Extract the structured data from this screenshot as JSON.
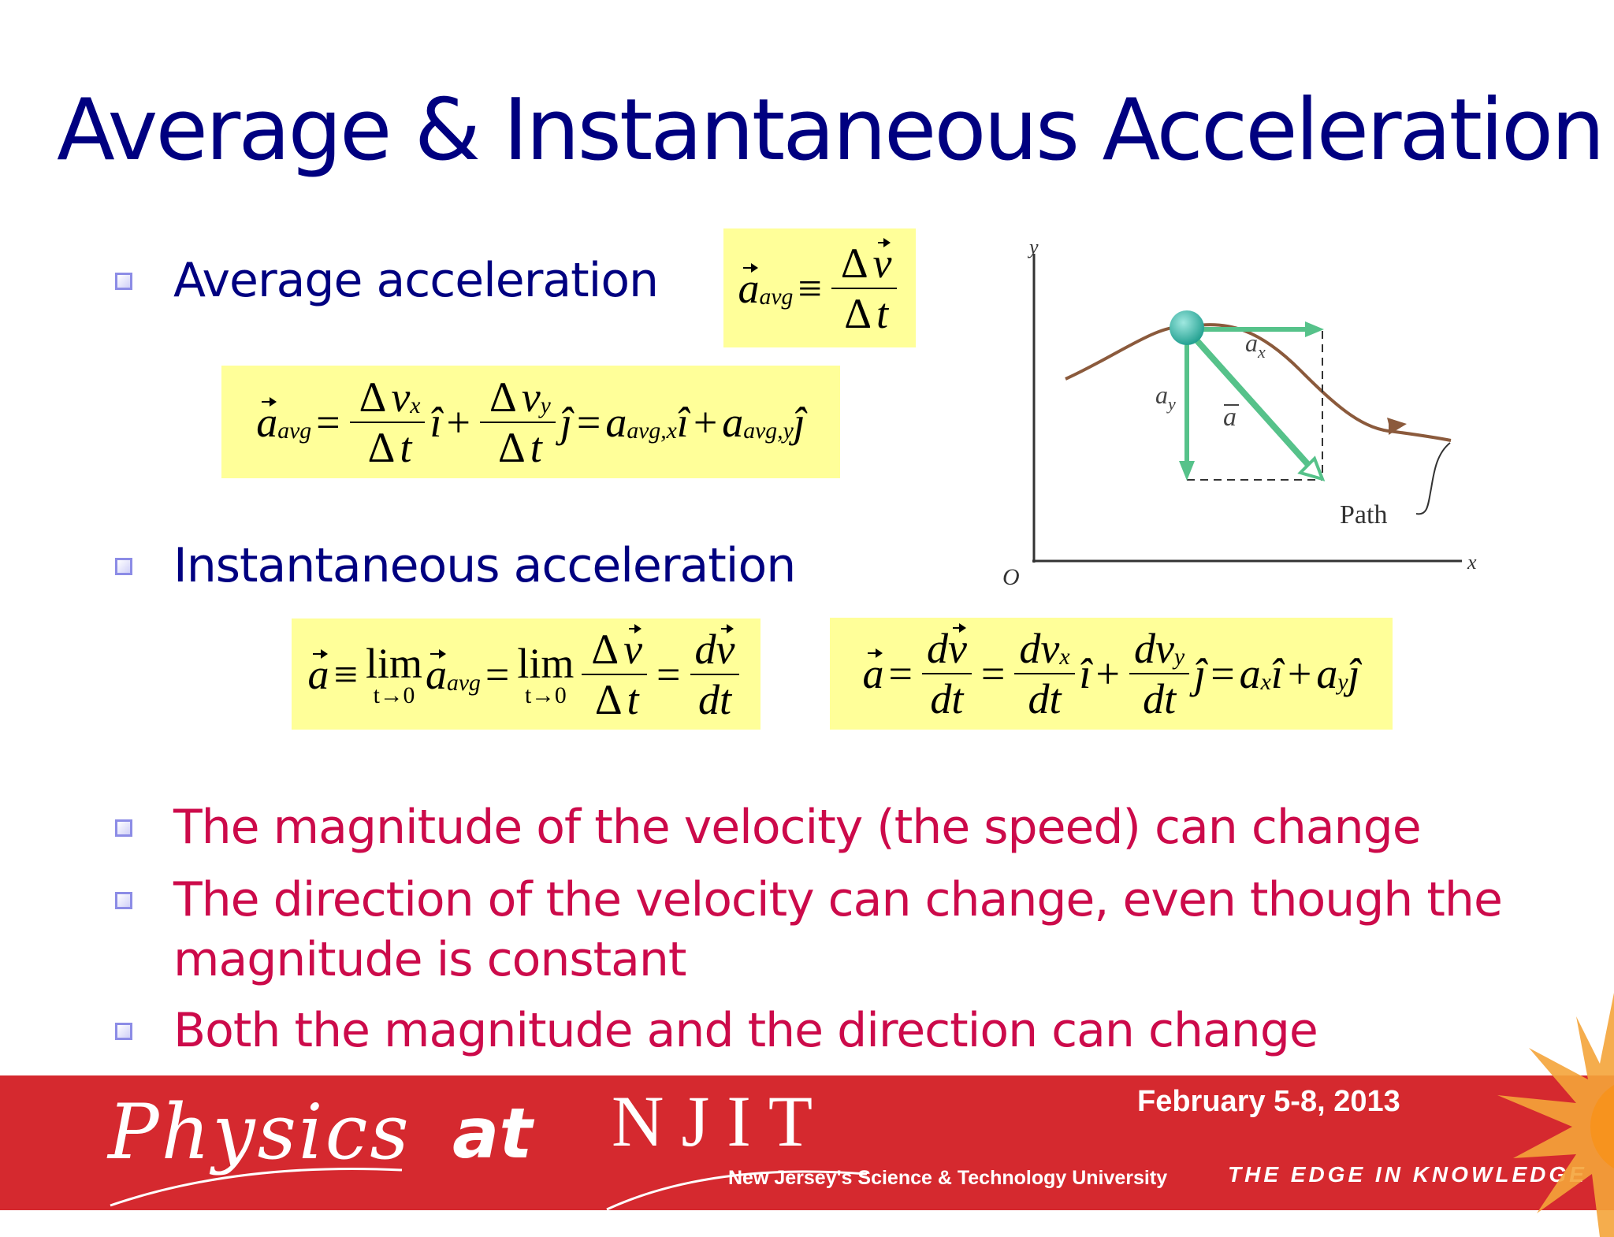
{
  "title": "Average & Instantaneous Acceleration",
  "bullets": [
    {
      "lines": [
        "Average acceleration"
      ]
    },
    {
      "lines": [
        "Instantaneous acceleration"
      ]
    },
    {
      "lines": [
        "The magnitude of the velocity (the speed) can change"
      ]
    },
    {
      "lines": [
        "The direction of the velocity can change, even though the",
        "magnitude is constant"
      ]
    },
    {
      "lines": [
        "Both the magnitude and the direction can change"
      ]
    }
  ],
  "equations": [
    [
      {
        "v": "a",
        "vec": true,
        "sub": "avg"
      },
      "≡",
      {
        "frac": [
          [
            "Δ",
            {
              "v": "v",
              "vec": true
            }
          ],
          [
            "Δ",
            {
              "v": "t"
            }
          ]
        ]
      }
    ],
    [
      {
        "v": "a",
        "vec": true,
        "sub": "avg"
      },
      "=",
      {
        "frac": [
          [
            "Δ",
            {
              "v": "v",
              "sub": "x"
            }
          ],
          [
            "Δ",
            {
              "v": "t"
            }
          ]
        ]
      },
      {
        "v": "î"
      },
      "+",
      {
        "frac": [
          [
            "Δ",
            {
              "v": "v",
              "sub": "y"
            }
          ],
          [
            "Δ",
            {
              "v": "t"
            }
          ]
        ]
      },
      {
        "v": "ĵ"
      },
      "=",
      {
        "v": "a",
        "sub": "avg,x"
      },
      {
        "v": "î"
      },
      "+",
      {
        "v": "a",
        "sub": "avg,y"
      },
      {
        "v": "ĵ"
      }
    ],
    [
      {
        "v": "a",
        "vec": true
      },
      "≡",
      {
        "lim": "lim",
        "under": "t→0"
      },
      {
        "v": "a",
        "vec": true,
        "sub": "avg"
      },
      "=",
      {
        "lim": "lim",
        "under": "t→0"
      },
      {
        "frac": [
          [
            "Δ",
            {
              "v": "v",
              "vec": true
            }
          ],
          [
            "Δ",
            {
              "v": "t"
            }
          ]
        ]
      },
      "=",
      {
        "frac": [
          [
            {
              "v": "d"
            },
            {
              "v": "v",
              "vec": true
            }
          ],
          [
            {
              "v": "dt"
            }
          ]
        ]
      }
    ],
    [
      {
        "v": "a",
        "vec": true
      },
      "=",
      {
        "frac": [
          [
            {
              "v": "d"
            },
            {
              "v": "v",
              "vec": true
            }
          ],
          [
            {
              "v": "dt"
            }
          ]
        ]
      },
      "=",
      {
        "frac": [
          [
            {
              "v": "dv",
              "sub": "x"
            }
          ],
          [
            {
              "v": "dt"
            }
          ]
        ]
      },
      {
        "v": "î"
      },
      "+",
      {
        "frac": [
          [
            {
              "v": "dv",
              "sub": "y"
            }
          ],
          [
            {
              "v": "dt"
            }
          ]
        ]
      },
      {
        "v": "ĵ"
      },
      "=",
      {
        "v": "a",
        "sub": "x"
      },
      {
        "v": "î"
      },
      "+",
      {
        "v": "a",
        "sub": "y"
      },
      {
        "v": "ĵ"
      }
    ]
  ],
  "figure": {
    "y_axis": "y",
    "x_axis": "x",
    "origin": "O",
    "ax": "a",
    "ax_sub": "x",
    "ay": "a",
    "ay_sub": "y",
    "a_vec": "a",
    "path": "Path"
  },
  "footer": {
    "physics": "Physics",
    "at": "at",
    "njit": "NJIT",
    "tagline": "New Jersey's Science & Technology University",
    "date": "February 5-8, 2013",
    "motto": "THE EDGE IN KNOWLEDGE"
  }
}
